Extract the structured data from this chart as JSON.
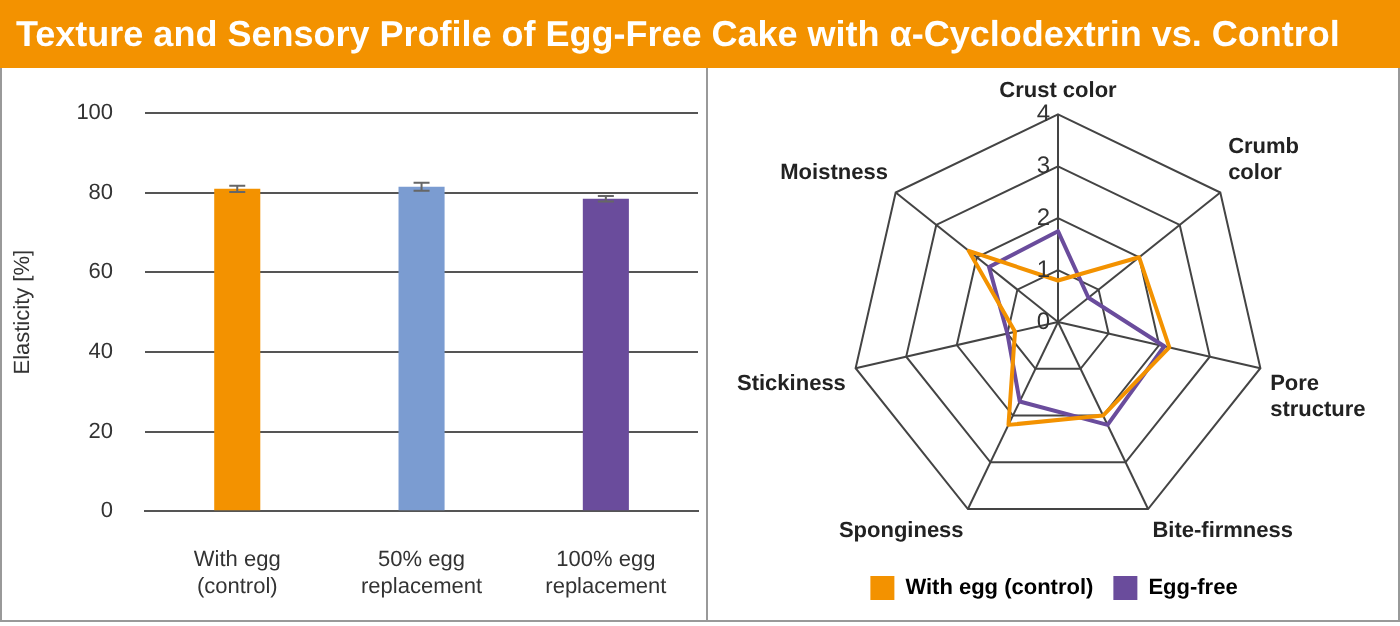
{
  "chart_data": [
    {
      "type": "bar",
      "title": "Texture and Sensory Profile of Egg-Free Cake with α-Cyclodextrin vs. Control",
      "ylabel": "Elasticity [%]",
      "categories": [
        [
          "With egg",
          "(control)"
        ],
        [
          "50% egg",
          "replacement"
        ],
        [
          "100% egg",
          "replacement"
        ]
      ],
      "values": [
        81,
        81.5,
        78.5
      ],
      "errors": [
        0.8,
        1,
        0.7
      ],
      "colors": [
        "#f39200",
        "#7b9cd1",
        "#6a4c9c"
      ],
      "ylim": [
        0,
        100
      ],
      "yticks": [
        0,
        20,
        40,
        60,
        80,
        100
      ],
      "grid": "y",
      "legend": false
    },
    {
      "type": "radar",
      "categories": [
        "Crust color",
        "Crumb color",
        "Pore structure",
        "Bite-firmness",
        "Sponginess",
        "Stickiness",
        "Moistness"
      ],
      "series": [
        {
          "name": "With egg (control)",
          "color": "#f39200",
          "values": [
            0.8,
            2.0,
            2.2,
            2.0,
            2.2,
            0.85,
            2.2
          ]
        },
        {
          "name": "Egg-free",
          "color": "#6a4c9c",
          "values": [
            1.75,
            0.75,
            2.1,
            2.2,
            1.7,
            1.0,
            1.7
          ]
        }
      ],
      "ylim": [
        0,
        4
      ],
      "yticks": [
        0,
        1,
        2,
        3,
        4
      ],
      "grid": true,
      "legend": "bottom",
      "marker": "none"
    }
  ]
}
